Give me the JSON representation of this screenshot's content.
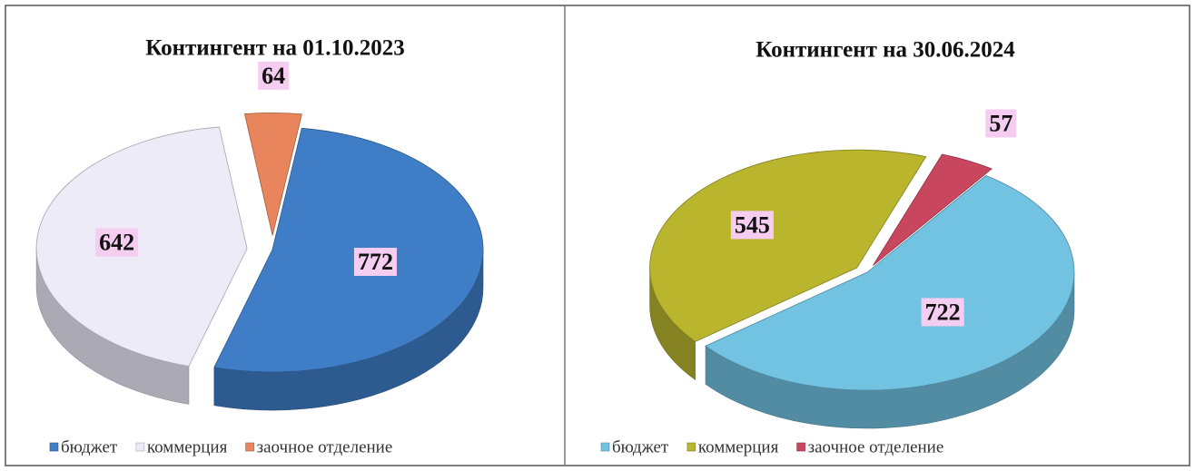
{
  "chart_data": [
    {
      "type": "pie",
      "title": "Контингент на 01.10.2023",
      "categories": [
        "бюджет",
        "коммерция",
        "заочное отделение"
      ],
      "values": [
        772,
        642,
        64
      ],
      "colors": [
        "#3f7ec6",
        "#eeebf8",
        "#e8855c"
      ]
    },
    {
      "type": "pie",
      "title": "Контингент на 30.06.2024",
      "categories": [
        "бюджет",
        "коммерция",
        "заочное отделение"
      ],
      "values": [
        722,
        545,
        57
      ],
      "colors": [
        "#72c3e2",
        "#b9b62e",
        "#c9465f"
      ]
    }
  ]
}
